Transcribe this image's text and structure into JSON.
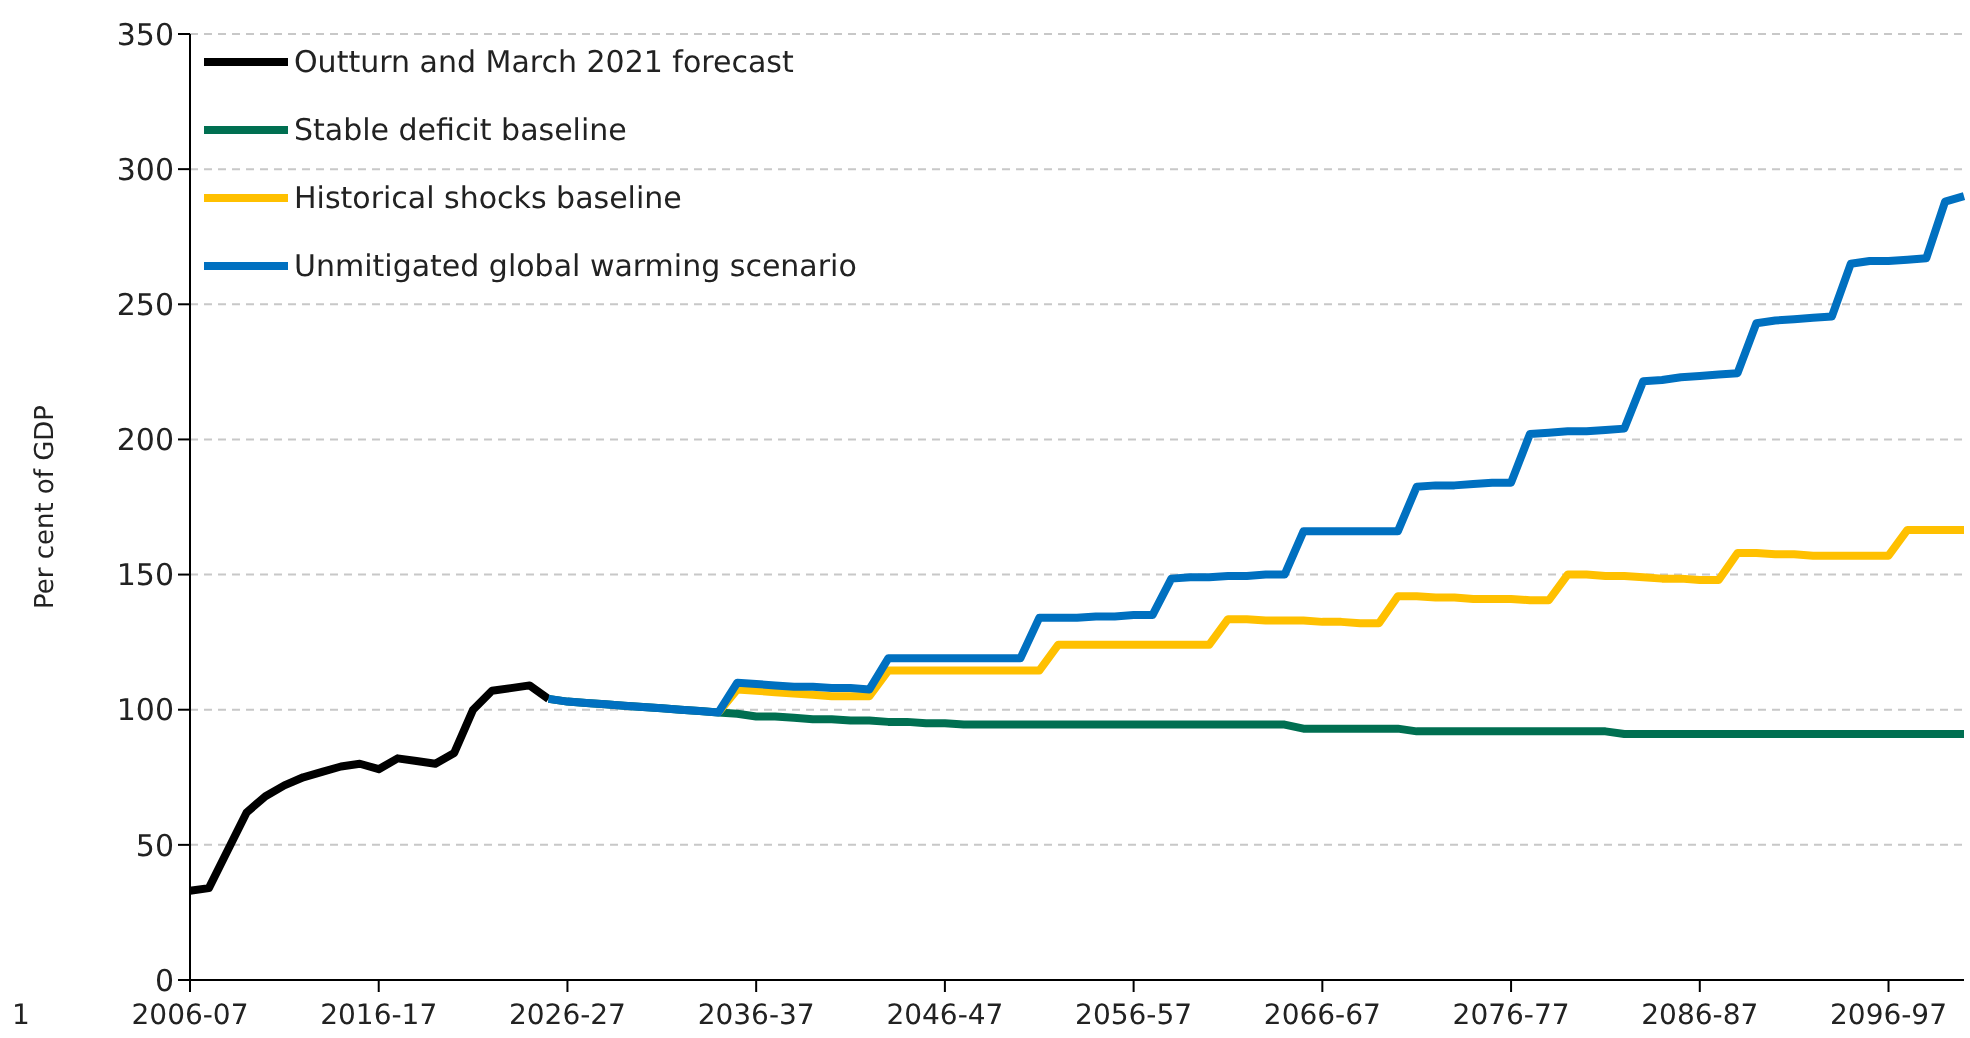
{
  "chart_data": {
    "type": "line",
    "ylabel": "Per cent of GDP",
    "categories": [
      "2006-07",
      null,
      null,
      null,
      null,
      null,
      null,
      null,
      null,
      null,
      "2016-17",
      null,
      null,
      null,
      null,
      null,
      null,
      null,
      null,
      null,
      "2026-27",
      null,
      null,
      null,
      null,
      null,
      null,
      null,
      null,
      null,
      "2036-37",
      null,
      null,
      null,
      null,
      null,
      null,
      null,
      null,
      null,
      "2046-47",
      null,
      null,
      null,
      null,
      null,
      null,
      null,
      null,
      null,
      "2056-57",
      null,
      null,
      null,
      null,
      null,
      null,
      null,
      null,
      null,
      "2066-67",
      null,
      null,
      null,
      null,
      null,
      null,
      null,
      null,
      null,
      "2076-77",
      null,
      null,
      null,
      null,
      null,
      null,
      null,
      null,
      null,
      "2086-87",
      null,
      null,
      null,
      null,
      null,
      null,
      null,
      null,
      null,
      "2096-97",
      null,
      null,
      null,
      null
    ],
    "series": [
      {
        "name": "Outturn and March 2021 forecast",
        "color": "#000000",
        "values": [
          33,
          34,
          48,
          62,
          68,
          72,
          75,
          77,
          79,
          80,
          78,
          82,
          81,
          80,
          84,
          100,
          107,
          108,
          109,
          104,
          null,
          null,
          null,
          null,
          null,
          null,
          null,
          null,
          null,
          null,
          null,
          null,
          null,
          null,
          null,
          null,
          null,
          null,
          null,
          null,
          null,
          null,
          null,
          null,
          null,
          null,
          null,
          null,
          null,
          null,
          null,
          null,
          null,
          null,
          null,
          null,
          null,
          null,
          null,
          null,
          null,
          null,
          null,
          null,
          null,
          null,
          null,
          null,
          null,
          null,
          null,
          null,
          null,
          null,
          null,
          null,
          null,
          null,
          null,
          null,
          null,
          null,
          null,
          null,
          null,
          null,
          null,
          null,
          null,
          null,
          null,
          null,
          null,
          null,
          null
        ]
      },
      {
        "name": "Stable deficit baseline",
        "color": "#006f51",
        "values": [
          null,
          null,
          null,
          null,
          null,
          null,
          null,
          null,
          null,
          null,
          null,
          null,
          null,
          null,
          null,
          null,
          null,
          null,
          null,
          104,
          103,
          102.5,
          102,
          101.5,
          101,
          100.5,
          100,
          99.5,
          99,
          98.5,
          97.5,
          97.5,
          97,
          96.5,
          96.5,
          96,
          96,
          95.5,
          95.5,
          95,
          95,
          94.5,
          94.5,
          94.5,
          94.5,
          94.5,
          94.5,
          94.5,
          94.5,
          94.5,
          94.5,
          94.5,
          94.5,
          94.5,
          94.5,
          94.5,
          94.5,
          94.5,
          94.5,
          93,
          93,
          93,
          93,
          93,
          93,
          92,
          92,
          92,
          92,
          92,
          92,
          92,
          92,
          92,
          92,
          92,
          91,
          91,
          91,
          91,
          91,
          91,
          91,
          91,
          91,
          91,
          91,
          91,
          91,
          91,
          91,
          91,
          91,
          91,
          91
        ]
      },
      {
        "name": "Historical shocks baseline",
        "color": "#ffc000",
        "values": [
          null,
          null,
          null,
          null,
          null,
          null,
          null,
          null,
          null,
          null,
          null,
          null,
          null,
          null,
          null,
          null,
          null,
          null,
          null,
          null,
          null,
          null,
          null,
          null,
          null,
          null,
          null,
          null,
          99,
          107.5,
          107,
          106.5,
          106,
          105.5,
          105,
          105,
          105,
          114.5,
          114.5,
          114.5,
          114.5,
          114.5,
          114.5,
          114.5,
          114.5,
          114.5,
          124,
          124,
          124,
          124,
          124,
          124,
          124,
          124,
          124,
          133.5,
          133.5,
          133,
          133,
          133,
          132.5,
          132.5,
          132,
          132,
          142,
          142,
          141.5,
          141.5,
          141,
          141,
          141,
          140.5,
          140.5,
          150,
          150,
          149.5,
          149.5,
          149,
          148.5,
          148.5,
          148,
          148,
          158,
          158,
          157.5,
          157.5,
          157,
          157,
          157,
          157,
          157,
          166.5,
          166.5,
          166.5,
          166.5
        ]
      },
      {
        "name": "Unmitigated global warming scenario",
        "color": "#0070c0",
        "values": [
          null,
          null,
          null,
          null,
          null,
          null,
          null,
          null,
          null,
          null,
          null,
          null,
          null,
          null,
          null,
          null,
          null,
          null,
          null,
          104,
          103,
          102.5,
          102,
          101.5,
          101,
          100.5,
          100,
          99.5,
          99,
          110,
          109.5,
          109,
          108.5,
          108.5,
          108,
          108,
          107.5,
          119,
          119,
          119,
          119,
          119,
          119,
          119,
          119,
          134,
          134,
          134,
          134.5,
          134.5,
          135,
          135,
          148.5,
          149,
          149,
          149.5,
          149.5,
          150,
          150,
          166,
          166,
          166,
          166,
          166,
          166,
          182.5,
          183,
          183,
          183.5,
          184,
          184,
          202,
          202.5,
          203,
          203,
          203.5,
          204,
          221.5,
          222,
          223,
          223.5,
          224,
          224.5,
          243,
          244,
          244.5,
          245,
          245.5,
          265,
          266,
          266,
          266.5,
          267,
          288,
          290
        ]
      }
    ],
    "ylim": [
      0,
      350
    ],
    "yticks": [
      0,
      50,
      100,
      150,
      200,
      250,
      300,
      350
    ],
    "grid": "y",
    "legend": "top left",
    "line_style": "solid",
    "marker": "none",
    "annotations": [
      "1"
    ]
  }
}
